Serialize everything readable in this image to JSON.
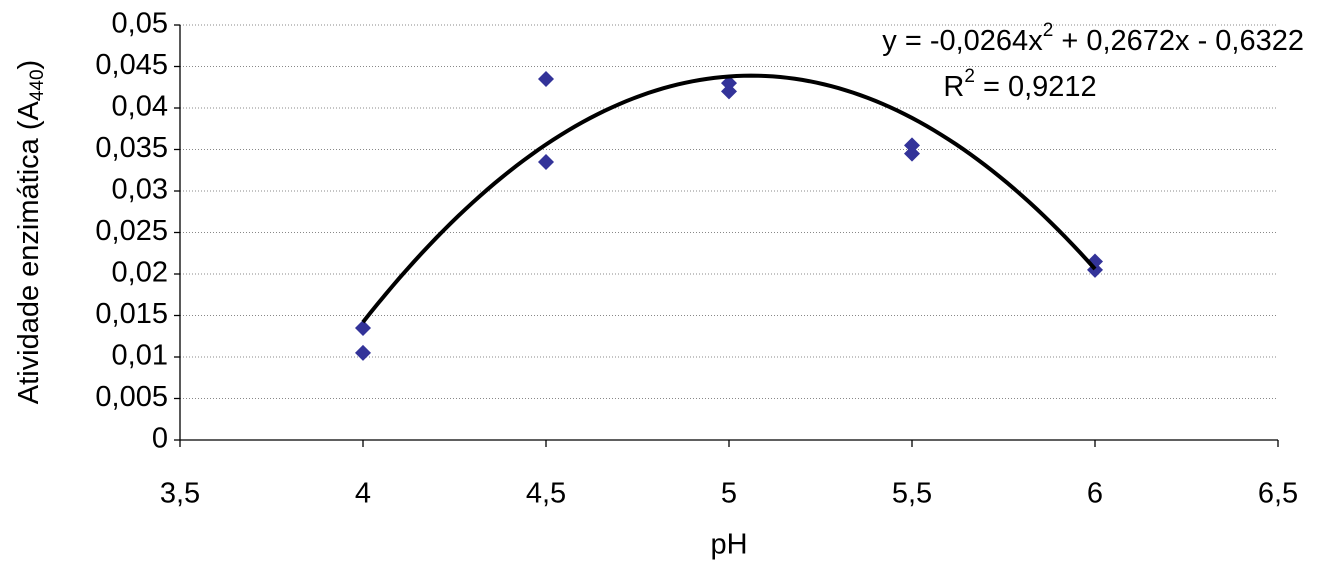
{
  "chart_data": {
    "type": "scatter",
    "x_label": "pH",
    "y_label": {
      "before": "Atividade enzimática (A",
      "sub": "440",
      "after": ")"
    },
    "x": [
      4,
      4,
      4.5,
      4.5,
      5,
      5,
      5.5,
      5.5,
      6,
      6
    ],
    "values": [
      0.0135,
      0.0105,
      0.0435,
      0.0335,
      0.043,
      0.042,
      0.0355,
      0.0345,
      0.0215,
      0.0205
    ],
    "color": "#333399",
    "xlim": [
      3.5,
      6.5
    ],
    "xticks": [
      {
        "value": 3.5,
        "label": "3,5"
      },
      4,
      {
        "value": 4.5,
        "label": "4,5"
      },
      5,
      {
        "value": 5.5,
        "label": "5,5"
      },
      6,
      {
        "value": 6.5,
        "label": "6,5"
      }
    ],
    "ylim": [
      0,
      0.05
    ],
    "yticks": [
      0,
      {
        "value": 0.005,
        "label": "0,005"
      },
      {
        "value": 0.01,
        "label": "0,01"
      },
      {
        "value": 0.015,
        "label": "0,015"
      },
      {
        "value": 0.02,
        "label": "0,02"
      },
      {
        "value": 0.025,
        "label": "0,025"
      },
      {
        "value": 0.03,
        "label": "0,03"
      },
      {
        "value": 0.035,
        "label": "0,035"
      },
      {
        "value": 0.04,
        "label": "0,04"
      },
      {
        "value": 0.045,
        "label": "0,045"
      },
      {
        "value": 0.05,
        "label": "0,05"
      }
    ],
    "grid": true,
    "trendline": {
      "type": "polynomial",
      "coefficients": [
        -0.0264,
        0.2672,
        -0.6322
      ],
      "color": "#000000",
      "equation": {
        "before": "y = -0,0264x",
        "sup": "2",
        "after": " + 0,2672x - 0,6322"
      },
      "r2": {
        "before": "R",
        "sup": "2",
        "after": " = 0,9212"
      }
    }
  }
}
